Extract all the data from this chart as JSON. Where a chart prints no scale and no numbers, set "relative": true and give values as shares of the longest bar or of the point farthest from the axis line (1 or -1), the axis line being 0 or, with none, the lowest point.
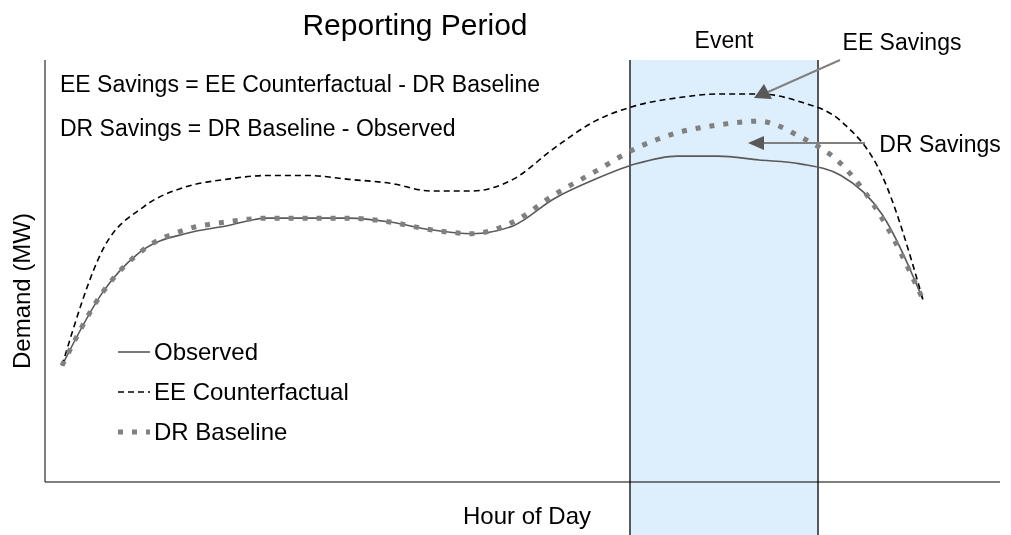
{
  "chart_data": {
    "type": "line",
    "title": "Reporting Period",
    "xlabel": "Hour of Day",
    "ylabel": "Demand (MW)",
    "relative": true,
    "categories": [
      null,
      null,
      null,
      null,
      null,
      null,
      null,
      null,
      null,
      null,
      null,
      null,
      null,
      null,
      null,
      null,
      null,
      null,
      null,
      null,
      null,
      null
    ],
    "series": [
      {
        "name": "Observed",
        "color": "#595959",
        "line_style": "solid",
        "values": [
          0.3,
          0.49,
          0.6,
          0.64,
          0.66,
          0.68,
          0.68,
          0.68,
          0.67,
          0.65,
          0.64,
          0.66,
          0.73,
          0.78,
          0.82,
          0.84,
          0.84,
          0.83,
          0.82,
          0.79,
          0.69,
          0.47
        ]
      },
      {
        "name": "EE Counterfactual",
        "color": "#000000",
        "line_style": "dashed",
        "values": [
          0.3,
          0.6,
          0.71,
          0.76,
          0.78,
          0.79,
          0.79,
          0.78,
          0.77,
          0.75,
          0.75,
          0.78,
          0.86,
          0.93,
          0.97,
          0.99,
          1.0,
          1.0,
          0.98,
          0.93,
          0.79,
          0.47
        ]
      },
      {
        "name": "DR Baseline",
        "color": "#808080",
        "line_style": "dotted",
        "values": [
          0.3,
          0.49,
          0.6,
          0.65,
          0.67,
          0.68,
          0.68,
          0.68,
          0.67,
          0.65,
          0.64,
          0.67,
          0.74,
          0.8,
          0.86,
          0.9,
          0.92,
          0.93,
          0.89,
          0.82,
          0.68,
          0.47
        ]
      }
    ],
    "annotations": [
      "EE Savings = EE Counterfactual - DR Baseline",
      "DR Savings = DR Baseline - Observed",
      "EE Savings",
      "DR Savings",
      "Event"
    ],
    "legend": "bottom left"
  }
}
